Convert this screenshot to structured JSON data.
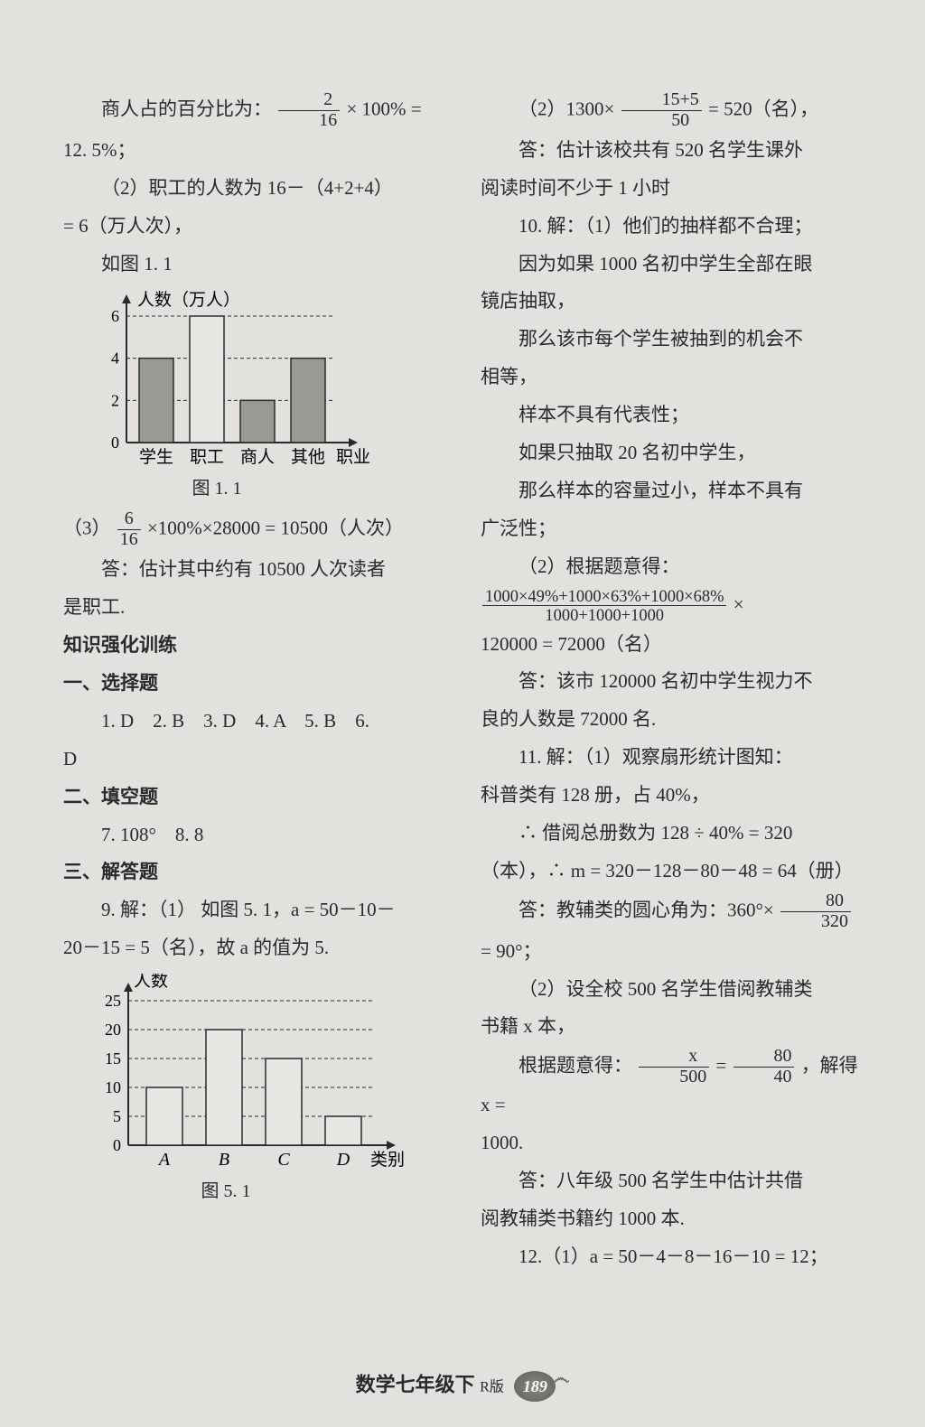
{
  "left": {
    "l1a": "商人占的百分比为：",
    "frac1": {
      "num": "2",
      "den": "16"
    },
    "l1b": "× 100% =",
    "l2": "12. 5%；",
    "l3": "（2）职工的人数为 16－（4+2+4）",
    "l4": "= 6（万人次），",
    "l5": "如图 1. 1",
    "chart1": {
      "ylabel": "人数（万人）",
      "xlabel": "职业",
      "categories": [
        "学生",
        "职工",
        "商人",
        "其他"
      ],
      "values": [
        4,
        6,
        2,
        4
      ],
      "yticks": [
        0,
        2,
        4,
        6
      ],
      "bar_fill": "#9a9a94",
      "bar_fill_white": "#e8e7e3",
      "axis_color": "#2a2a2a",
      "grid_dash": "4,3",
      "caption": "图 1. 1"
    },
    "l6a": "（3）",
    "frac2": {
      "num": "6",
      "den": "16"
    },
    "l6b": "×100%×28000 = 10500（人次）",
    "l7": "答：估计其中约有 10500 人次读者",
    "l8": "是职工.",
    "l9": "知识强化训练",
    "l10": "一、选择题",
    "l11": "1. D　2. B　3. D　4. A　5. B　6.",
    "l12": "D",
    "l13": "二、填空题",
    "l14": "7. 108°　8. 8",
    "l15": "三、解答题",
    "l16": "9. 解：（1） 如图 5. 1，a = 50－10－",
    "l17": "20－15 = 5（名），故 a 的值为 5.",
    "chart2": {
      "ylabel": "人数",
      "xlabel": "类别",
      "categories": [
        "A",
        "B",
        "C",
        "D"
      ],
      "values": [
        10,
        20,
        15,
        5
      ],
      "yticks": [
        0,
        5,
        10,
        15,
        20,
        25
      ],
      "bar_fill": "#e8e7e3",
      "axis_color": "#2a2a2a",
      "grid_dash": "4,3",
      "caption": "图 5. 1"
    }
  },
  "right": {
    "r1a": "（2）1300×",
    "frac3": {
      "num": "15+5",
      "den": "50"
    },
    "r1b": "= 520（名），",
    "r2": "答：估计该校共有 520 名学生课外",
    "r3": "阅读时间不少于 1 小时",
    "r4": "10. 解：（1）他们的抽样都不合理；",
    "r5": "因为如果 1000 名初中学生全部在眼",
    "r6": "镜店抽取，",
    "r7": "那么该市每个学生被抽到的机会不",
    "r8": "相等，",
    "r9": "样本不具有代表性；",
    "r10": "如果只抽取 20 名初中学生，",
    "r11": "那么样本的容量过小，样本不具有",
    "r12": "广泛性；",
    "r13": "（2）根据题意得：",
    "frac4": {
      "num": "1000×49%+1000×63%+1000×68%",
      "den": "1000+1000+1000"
    },
    "r14b": "×",
    "r15": "120000 = 72000（名）",
    "r16": "答：该市 120000 名初中学生视力不",
    "r17": "良的人数是 72000 名.",
    "r18": "11. 解：（1）观察扇形统计图知：",
    "r19": "科普类有 128 册，占 40%，",
    "r20": "∴ 借阅总册数为 128 ÷ 40% = 320",
    "r21": "（本），∴ m = 320－128－80－48 = 64（册）",
    "r22a": "答：教辅类的圆心角为：360°×",
    "frac5": {
      "num": "80",
      "den": "320"
    },
    "r23": "= 90°；",
    "r24": "（2）设全校 500 名学生借阅教辅类",
    "r25": "书籍 x 本，",
    "r26a": "根据题意得：",
    "frac6": {
      "num": "x",
      "den": "500"
    },
    "r26b": " = ",
    "frac7": {
      "num": "80",
      "den": "40"
    },
    "r26c": "，解得 x =",
    "r27": "1000.",
    "r28": "答：八年级 500 名学生中估计共借",
    "r29": "阅教辅类书籍约 1000 本.",
    "r30": "12.（1）a = 50－4－8－16－10 = 12；"
  },
  "footer": {
    "title": "数学七年级下",
    "edition": "R版",
    "page": "189"
  }
}
